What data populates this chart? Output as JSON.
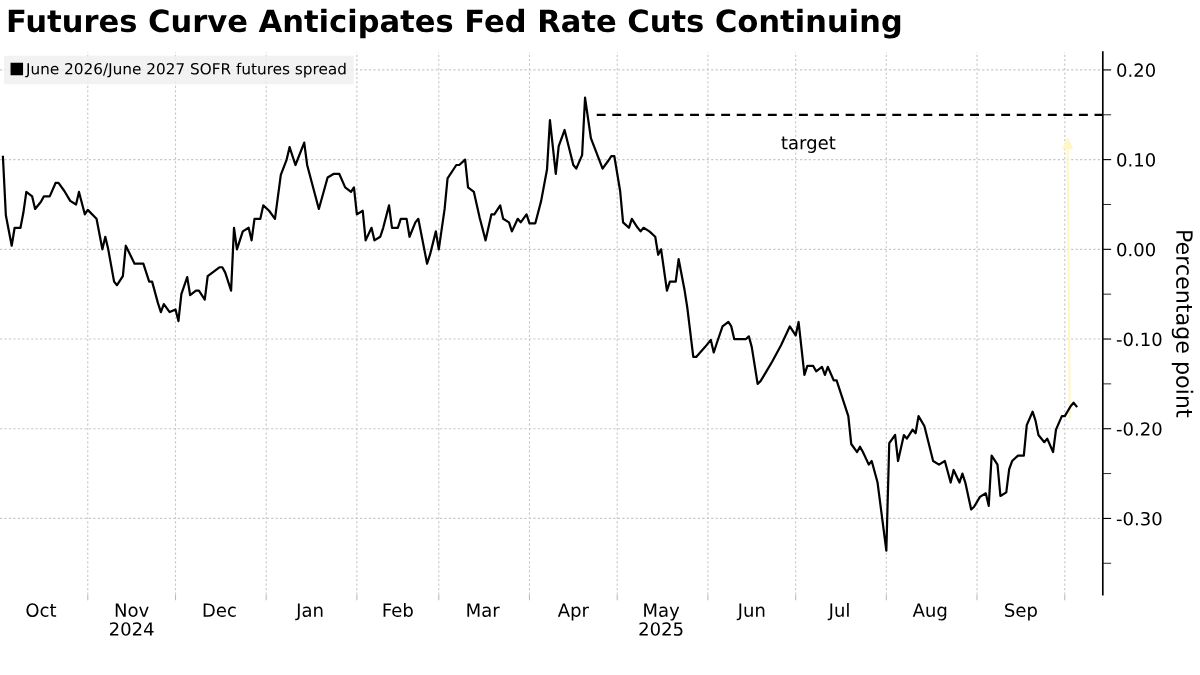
{
  "chart_data": {
    "type": "line",
    "title": "Futures Curve Anticipates Fed Rate Cuts Continuing",
    "ylabel": "Percentage point",
    "legend": "top left",
    "grid": true,
    "line_style": "solid",
    "xlim": [
      "2024-10-02",
      "2025-10-14"
    ],
    "ylim": [
      -0.385,
      0.22
    ],
    "xticks": [
      {
        "value": "2024-11-01",
        "label": null
      },
      {
        "value": "2024-12-01",
        "label": null
      },
      {
        "value": "2025-01-01",
        "label": null
      },
      {
        "value": "2025-02-01",
        "label": null
      },
      {
        "value": "2025-03-01",
        "label": null
      },
      {
        "value": "2025-04-01",
        "label": null
      },
      {
        "value": "2025-05-01",
        "label": null
      },
      {
        "value": "2025-06-01",
        "label": null
      },
      {
        "value": "2025-07-01",
        "label": null
      },
      {
        "value": "2025-08-01",
        "label": null
      },
      {
        "value": "2025-09-01",
        "label": null
      },
      {
        "value": "2025-10-01",
        "label": null
      },
      {
        "value": "2024-10-16",
        "label": "Oct"
      },
      {
        "value": "2024-11-16",
        "label": "Nov\n2024"
      },
      {
        "value": "2024-12-16",
        "label": "Dec"
      },
      {
        "value": "2025-01-16",
        "label": "Jan"
      },
      {
        "value": "2025-02-15",
        "label": "Feb"
      },
      {
        "value": "2025-03-16",
        "label": "Mar"
      },
      {
        "value": "2025-04-16",
        "label": "Apr"
      },
      {
        "value": "2025-05-16",
        "label": "May\n2025"
      },
      {
        "value": "2025-06-16",
        "label": "Jun"
      },
      {
        "value": "2025-07-16",
        "label": "Jul"
      },
      {
        "value": "2025-08-16",
        "label": "Aug"
      },
      {
        "value": "2025-09-16",
        "label": "Sep"
      }
    ],
    "yticks": [
      {
        "value": 0.2,
        "label": "0.20"
      },
      {
        "value": 0.15,
        "label": null
      },
      {
        "value": 0.1,
        "label": "0.10"
      },
      {
        "value": 0.05,
        "label": null
      },
      {
        "value": 0.0,
        "label": "0.00"
      },
      {
        "value": -0.05,
        "label": null
      },
      {
        "value": -0.1,
        "label": "-0.10"
      },
      {
        "value": -0.15,
        "label": null
      },
      {
        "value": -0.2,
        "label": "-0.20"
      },
      {
        "value": -0.25,
        "label": null
      },
      {
        "value": -0.3,
        "label": "-0.30"
      },
      {
        "value": -0.35,
        "label": null
      }
    ],
    "annotations": [
      "target"
    ],
    "series": [
      {
        "name": "June 2026/June 2027 SOFR futures spread",
        "color": "#000000",
        "x": [
          "2024-10-03",
          "2024-10-04",
          "2024-10-06",
          "2024-10-07",
          "2024-10-09",
          "2024-10-10",
          "2024-10-11",
          "2024-10-13",
          "2024-10-14",
          "2024-10-16",
          "2024-10-17",
          "2024-10-19",
          "2024-10-21",
          "2024-10-22",
          "2024-10-24",
          "2024-10-26",
          "2024-10-28",
          "2024-10-29",
          "2024-10-31",
          "2024-11-01",
          "2024-11-04",
          "2024-11-06",
          "2024-11-07",
          "2024-11-08",
          "2024-11-10",
          "2024-11-11",
          "2024-11-13",
          "2024-11-14",
          "2024-11-17",
          "2024-11-20",
          "2024-11-22",
          "2024-11-23",
          "2024-11-25",
          "2024-11-26",
          "2024-11-27",
          "2024-11-29",
          "2024-12-01",
          "2024-12-02",
          "2024-12-03",
          "2024-12-05",
          "2024-12-06",
          "2024-12-08",
          "2024-12-09",
          "2024-12-11",
          "2024-12-12",
          "2024-12-16",
          "2024-12-17",
          "2024-12-18",
          "2024-12-20",
          "2024-12-21",
          "2024-12-22",
          "2024-12-24",
          "2024-12-26",
          "2024-12-27",
          "2024-12-28",
          "2024-12-30",
          "2024-12-31",
          "2025-01-02",
          "2025-01-04",
          "2025-01-06",
          "2025-01-08",
          "2025-01-09",
          "2025-01-11",
          "2025-01-14",
          "2025-01-15",
          "2025-01-19",
          "2025-01-22",
          "2025-01-24",
          "2025-01-26",
          "2025-01-28",
          "2025-01-30",
          "2025-01-31",
          "2025-02-01",
          "2025-02-03",
          "2025-02-04",
          "2025-02-06",
          "2025-02-07",
          "2025-02-09",
          "2025-02-10",
          "2025-02-12",
          "2025-02-13",
          "2025-02-15",
          "2025-02-16",
          "2025-02-18",
          "2025-02-19",
          "2025-02-21",
          "2025-02-22",
          "2025-02-25",
          "2025-02-26",
          "2025-02-28",
          "2025-03-01",
          "2025-03-03",
          "2025-03-04",
          "2025-03-06",
          "2025-03-07",
          "2025-03-08",
          "2025-03-10",
          "2025-03-11",
          "2025-03-13",
          "2025-03-15",
          "2025-03-17",
          "2025-03-19",
          "2025-03-20",
          "2025-03-22",
          "2025-03-23",
          "2025-03-25",
          "2025-03-26",
          "2025-03-28",
          "2025-03-29",
          "2025-03-31",
          "2025-04-01",
          "2025-04-03",
          "2025-04-05",
          "2025-04-07",
          "2025-04-08",
          "2025-04-10",
          "2025-04-11",
          "2025-04-13",
          "2025-04-16",
          "2025-04-17",
          "2025-04-19",
          "2025-04-20",
          "2025-04-22",
          "2025-04-26",
          "2025-04-28",
          "2025-04-29",
          "2025-04-30",
          "2025-05-02",
          "2025-05-03",
          "2025-05-05",
          "2025-05-06",
          "2025-05-08",
          "2025-05-09",
          "2025-05-10",
          "2025-05-12",
          "2025-05-14",
          "2025-05-15",
          "2025-05-16",
          "2025-05-18",
          "2025-05-19",
          "2025-05-21",
          "2025-05-22",
          "2025-05-24",
          "2025-05-25",
          "2025-05-27",
          "2025-05-28",
          "2025-05-31",
          "2025-06-02",
          "2025-06-03",
          "2025-06-04",
          "2025-06-06",
          "2025-06-08",
          "2025-06-09",
          "2025-06-10",
          "2025-06-14",
          "2025-06-15",
          "2025-06-16",
          "2025-06-18",
          "2025-06-19",
          "2025-06-21",
          "2025-06-23",
          "2025-06-26",
          "2025-06-28",
          "2025-06-29",
          "2025-07-01",
          "2025-07-02",
          "2025-07-04",
          "2025-07-05",
          "2025-07-07",
          "2025-07-08",
          "2025-07-10",
          "2025-07-11",
          "2025-07-12",
          "2025-07-14",
          "2025-07-15",
          "2025-07-19",
          "2025-07-20",
          "2025-07-22",
          "2025-07-23",
          "2025-07-24",
          "2025-07-26",
          "2025-07-27",
          "2025-07-29",
          "2025-08-01",
          "2025-08-02",
          "2025-08-04",
          "2025-08-05",
          "2025-08-07",
          "2025-08-08",
          "2025-08-10",
          "2025-08-11",
          "2025-08-12",
          "2025-08-14",
          "2025-08-17",
          "2025-08-19",
          "2025-08-21",
          "2025-08-23",
          "2025-08-24",
          "2025-08-26",
          "2025-08-27",
          "2025-08-28",
          "2025-08-30",
          "2025-08-31",
          "2025-09-02",
          "2025-09-04",
          "2025-09-05",
          "2025-09-06",
          "2025-09-08",
          "2025-09-09",
          "2025-09-11",
          "2025-09-12",
          "2025-09-13",
          "2025-09-15",
          "2025-09-17",
          "2025-09-18",
          "2025-09-20",
          "2025-09-21",
          "2025-09-22",
          "2025-09-24",
          "2025-09-25",
          "2025-09-27",
          "2025-09-28",
          "2025-09-30",
          "2025-10-01",
          "2025-10-03",
          "2025-10-04",
          "2025-10-05"
        ],
        "values": [
          0.103,
          0.038,
          0.004,
          0.024,
          0.024,
          0.041,
          0.064,
          0.059,
          0.045,
          0.053,
          0.059,
          0.059,
          0.074,
          0.074,
          0.065,
          0.054,
          0.05,
          0.064,
          0.039,
          0.044,
          0.034,
          0.0,
          0.014,
          0.0,
          -0.036,
          -0.04,
          -0.03,
          0.004,
          -0.016,
          -0.016,
          -0.036,
          -0.036,
          -0.06,
          -0.07,
          -0.061,
          -0.07,
          -0.067,
          -0.08,
          -0.05,
          -0.031,
          -0.051,
          -0.046,
          -0.046,
          -0.056,
          -0.03,
          -0.02,
          -0.02,
          -0.026,
          -0.046,
          0.024,
          0.0,
          0.02,
          0.024,
          0.01,
          0.034,
          0.034,
          0.049,
          0.043,
          0.034,
          0.083,
          0.1,
          0.114,
          0.094,
          0.119,
          0.094,
          0.045,
          0.08,
          0.084,
          0.084,
          0.069,
          0.064,
          0.069,
          0.039,
          0.043,
          0.01,
          0.024,
          0.01,
          0.014,
          0.024,
          0.049,
          0.024,
          0.024,
          0.034,
          0.034,
          0.014,
          0.03,
          0.034,
          -0.016,
          -0.006,
          0.02,
          0.0,
          0.045,
          0.079,
          0.089,
          0.094,
          0.094,
          0.1,
          0.069,
          0.064,
          0.035,
          0.01,
          0.039,
          0.039,
          0.049,
          0.034,
          0.03,
          0.02,
          0.034,
          0.03,
          0.039,
          0.029,
          0.029,
          0.054,
          0.089,
          0.144,
          0.084,
          0.115,
          0.133,
          0.094,
          0.09,
          0.105,
          0.169,
          0.124,
          0.09,
          0.099,
          0.104,
          0.104,
          0.065,
          0.03,
          0.024,
          0.034,
          0.024,
          0.02,
          0.024,
          0.02,
          0.014,
          -0.006,
          0.0,
          -0.046,
          -0.036,
          -0.036,
          -0.011,
          -0.045,
          -0.066,
          -0.12,
          -0.12,
          -0.109,
          -0.101,
          -0.115,
          -0.105,
          -0.086,
          -0.081,
          -0.086,
          -0.1,
          -0.1,
          -0.097,
          -0.109,
          -0.15,
          -0.147,
          -0.136,
          -0.125,
          -0.107,
          -0.093,
          -0.086,
          -0.096,
          -0.081,
          -0.14,
          -0.13,
          -0.13,
          -0.136,
          -0.131,
          -0.14,
          -0.131,
          -0.146,
          -0.146,
          -0.186,
          -0.217,
          -0.226,
          -0.22,
          -0.226,
          -0.24,
          -0.236,
          -0.26,
          -0.336,
          -0.216,
          -0.207,
          -0.236,
          -0.207,
          -0.211,
          -0.201,
          -0.205,
          -0.186,
          -0.197,
          -0.236,
          -0.24,
          -0.236,
          -0.26,
          -0.246,
          -0.26,
          -0.25,
          -0.26,
          -0.29,
          -0.287,
          -0.276,
          -0.272,
          -0.286,
          -0.23,
          -0.24,
          -0.275,
          -0.271,
          -0.245,
          -0.236,
          -0.23,
          -0.23,
          -0.196,
          -0.181,
          -0.191,
          -0.207,
          -0.215,
          -0.211,
          -0.226,
          -0.201,
          -0.186,
          -0.186,
          -0.175,
          -0.171,
          -0.175
        ]
      },
      {
        "type": "line",
        "line_style": "dashed",
        "color": "#000000",
        "x": [
          "2025-04-24",
          "2025-10-14"
        ],
        "values": [
          0.15,
          0.15
        ]
      }
    ]
  }
}
